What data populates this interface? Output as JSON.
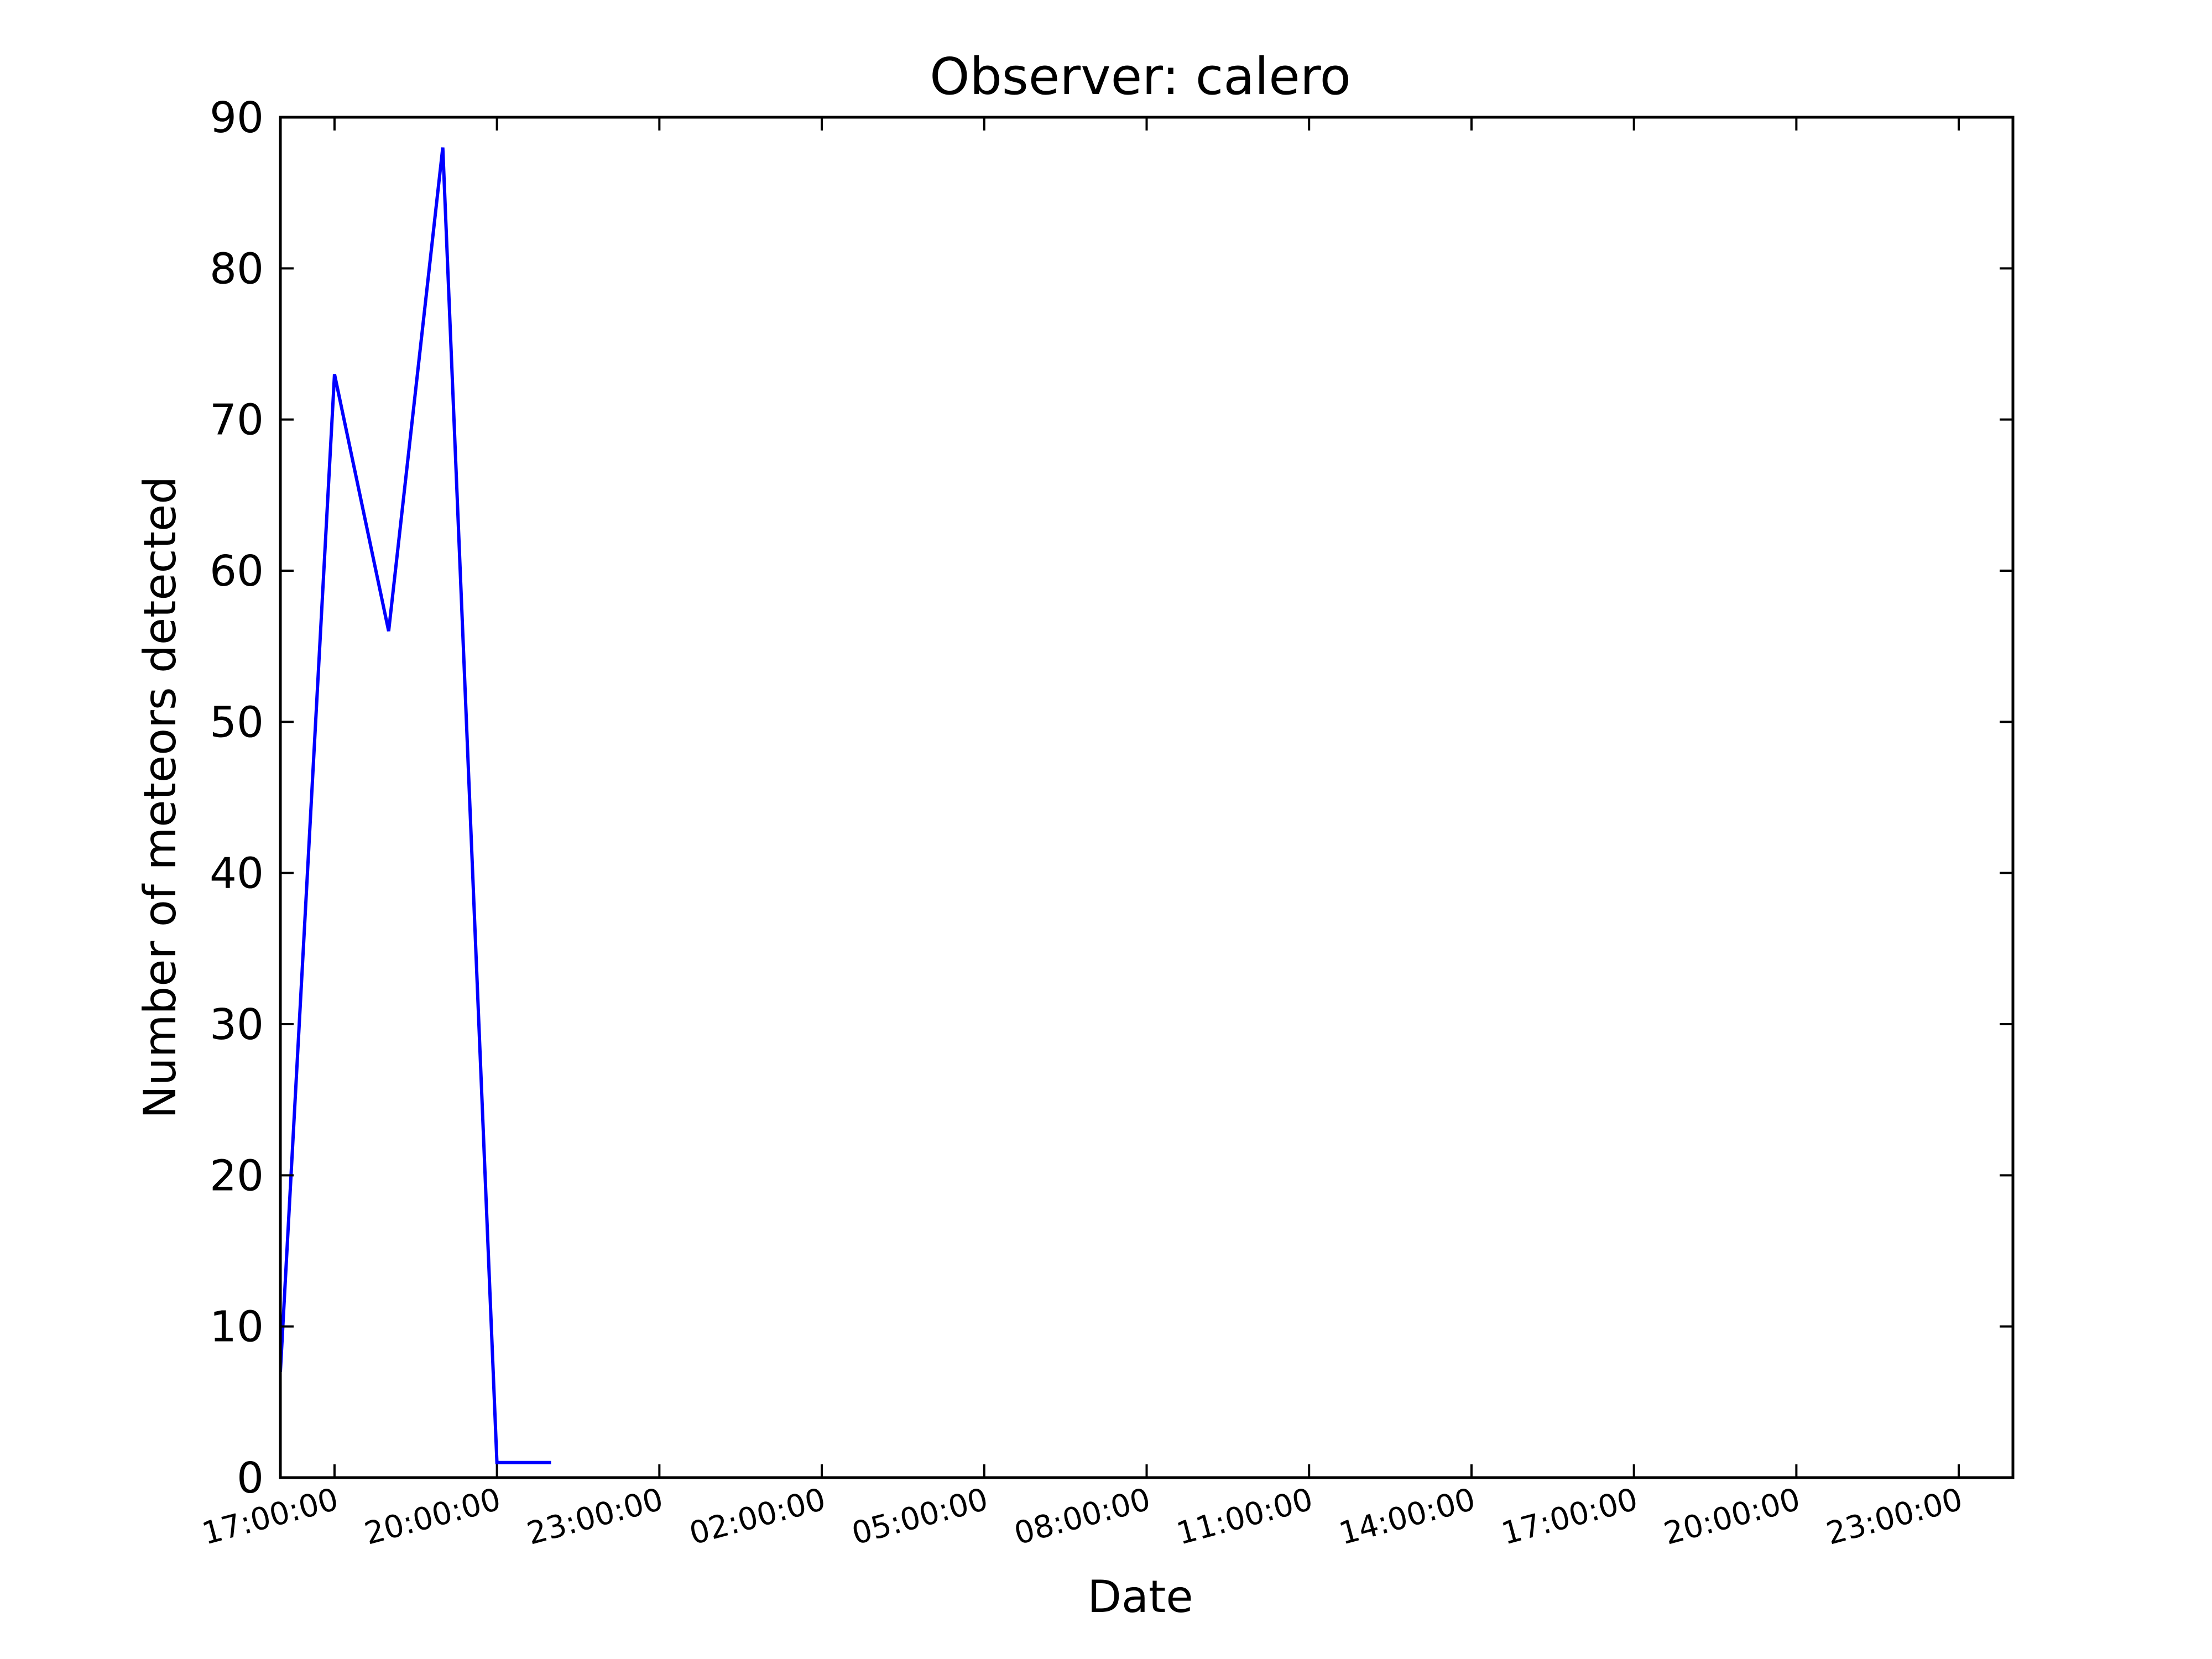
{
  "chart_data": {
    "type": "line",
    "title": "Observer: calero",
    "xlabel": "Date",
    "ylabel": "Number of meteors detected",
    "ylim": [
      0,
      90
    ],
    "xlim": [
      0,
      32
    ],
    "yticks": [
      0,
      10,
      20,
      30,
      40,
      50,
      60,
      70,
      80,
      90
    ],
    "xticks": [
      {
        "value": 1,
        "label": "17:00:00"
      },
      {
        "value": 4,
        "label": "20:00:00"
      },
      {
        "value": 7,
        "label": "23:00:00"
      },
      {
        "value": 10,
        "label": "02:00:00"
      },
      {
        "value": 13,
        "label": "05:00:00"
      },
      {
        "value": 16,
        "label": "08:00:00"
      },
      {
        "value": 19,
        "label": "11:00:00"
      },
      {
        "value": 22,
        "label": "14:00:00"
      },
      {
        "value": 25,
        "label": "17:00:00"
      },
      {
        "value": 28,
        "label": "20:00:00"
      },
      {
        "value": 31,
        "label": "23:00:00"
      }
    ],
    "series": [
      {
        "color": "#0000ff",
        "x": [
          0,
          1,
          2,
          3,
          4,
          5
        ],
        "y": [
          7,
          73,
          56,
          88,
          1,
          1
        ]
      }
    ],
    "grid": false,
    "legend": "none"
  }
}
